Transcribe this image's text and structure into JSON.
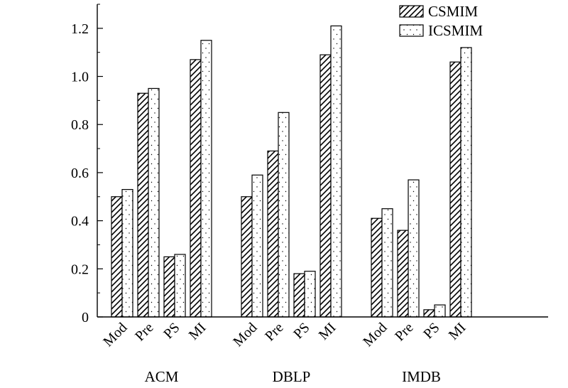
{
  "chart_data": {
    "type": "bar",
    "groups": [
      "ACM",
      "DBLP",
      "IMDB"
    ],
    "categories": [
      "Mod",
      "Pre",
      "PS",
      "MI"
    ],
    "series": [
      {
        "name": "CSMIM",
        "pattern": "diagonal-hatch",
        "values": [
          [
            0.5,
            0.93,
            0.25,
            1.07
          ],
          [
            0.5,
            0.69,
            0.18,
            1.09
          ],
          [
            0.41,
            0.36,
            0.03,
            1.06
          ]
        ]
      },
      {
        "name": "ICSMIM",
        "pattern": "dotted",
        "values": [
          [
            0.53,
            0.95,
            0.26,
            1.15
          ],
          [
            0.59,
            0.85,
            0.19,
            1.21
          ],
          [
            0.45,
            0.57,
            0.05,
            1.12
          ]
        ]
      }
    ],
    "yticks": [
      "0",
      "0.2",
      "0.4",
      "0.6",
      "0.8",
      "1.0",
      "1.2"
    ],
    "ylim": [
      0,
      1.3
    ],
    "legend_position": "top-right",
    "grid": false,
    "colors": {
      "bar_edge": "#000000",
      "background": "#ffffff"
    }
  }
}
